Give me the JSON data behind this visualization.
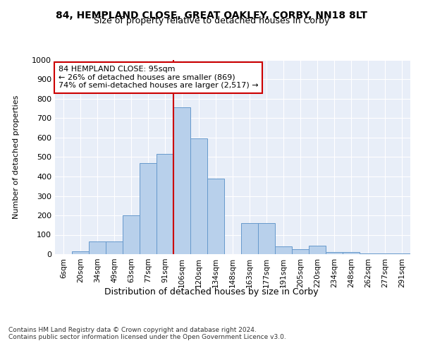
{
  "title": "84, HEMPLAND CLOSE, GREAT OAKLEY, CORBY, NN18 8LT",
  "subtitle": "Size of property relative to detached houses in Corby",
  "xlabel": "Distribution of detached houses by size in Corby",
  "ylabel": "Number of detached properties",
  "bar_color": "#b8d0eb",
  "bar_edge_color": "#6699cc",
  "background_color": "#e8eef8",
  "categories": [
    "6sqm",
    "20sqm",
    "34sqm",
    "49sqm",
    "63sqm",
    "77sqm",
    "91sqm",
    "106sqm",
    "120sqm",
    "134sqm",
    "148sqm",
    "163sqm",
    "177sqm",
    "191sqm",
    "205sqm",
    "220sqm",
    "234sqm",
    "248sqm",
    "262sqm",
    "277sqm",
    "291sqm"
  ],
  "values": [
    0,
    13,
    65,
    65,
    200,
    470,
    515,
    755,
    595,
    390,
    0,
    160,
    160,
    40,
    25,
    45,
    10,
    10,
    5,
    5,
    5
  ],
  "annotation_text": "84 HEMPLAND CLOSE: 95sqm\n← 26% of detached houses are smaller (869)\n74% of semi-detached houses are larger (2,517) →",
  "annotation_box_color": "#ffffff",
  "annotation_box_edge": "#cc0000",
  "vline_color": "#cc0000",
  "vline_x_index": 6.5,
  "ylim": [
    0,
    1000
  ],
  "yticks": [
    0,
    100,
    200,
    300,
    400,
    500,
    600,
    700,
    800,
    900,
    1000
  ],
  "footer_line1": "Contains HM Land Registry data © Crown copyright and database right 2024.",
  "footer_line2": "Contains public sector information licensed under the Open Government Licence v3.0."
}
